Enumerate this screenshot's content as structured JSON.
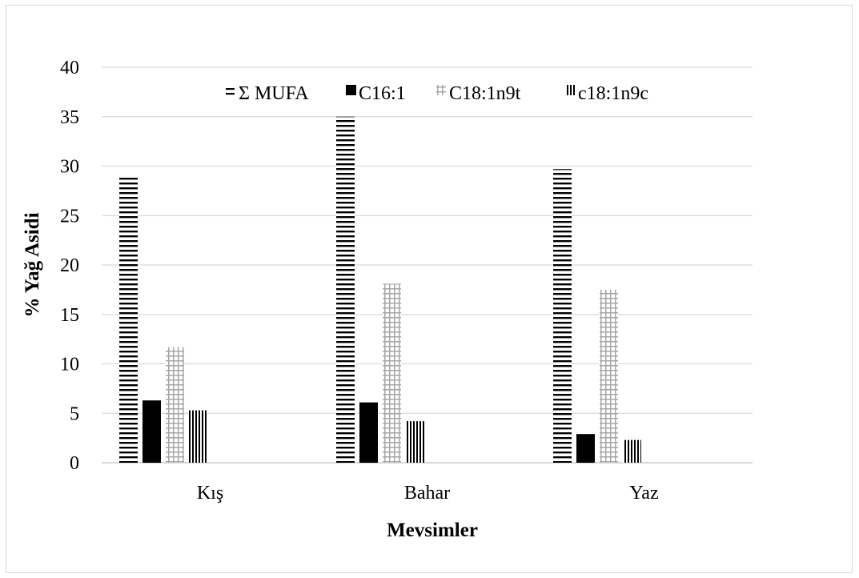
{
  "chart_data": {
    "type": "bar",
    "title": "",
    "xlabel": "Mevsimler",
    "ylabel": "% Yağ Asidi",
    "categories": [
      "Kış",
      "Bahar",
      "Yaz"
    ],
    "series": [
      {
        "name": "Σ MUFA",
        "values": [
          29.0,
          35.0,
          29.7
        ],
        "pattern": "horizontal-lines",
        "color": "#000000"
      },
      {
        "name": "C16:1",
        "values": [
          6.3,
          6.1,
          2.9
        ],
        "pattern": "solid",
        "color": "#000000"
      },
      {
        "name": "C18:1n9t",
        "values": [
          11.7,
          18.1,
          17.5
        ],
        "pattern": "grid",
        "color": "#a6a6a6"
      },
      {
        "name": "c18:1n9c",
        "values": [
          5.3,
          4.2,
          2.3
        ],
        "pattern": "vertical-lines",
        "color": "#000000"
      }
    ],
    "ylim": [
      0,
      40
    ],
    "yticks": [
      0,
      5,
      10,
      15,
      20,
      25,
      30,
      35,
      40
    ],
    "grid": true,
    "legend_position": "top"
  }
}
